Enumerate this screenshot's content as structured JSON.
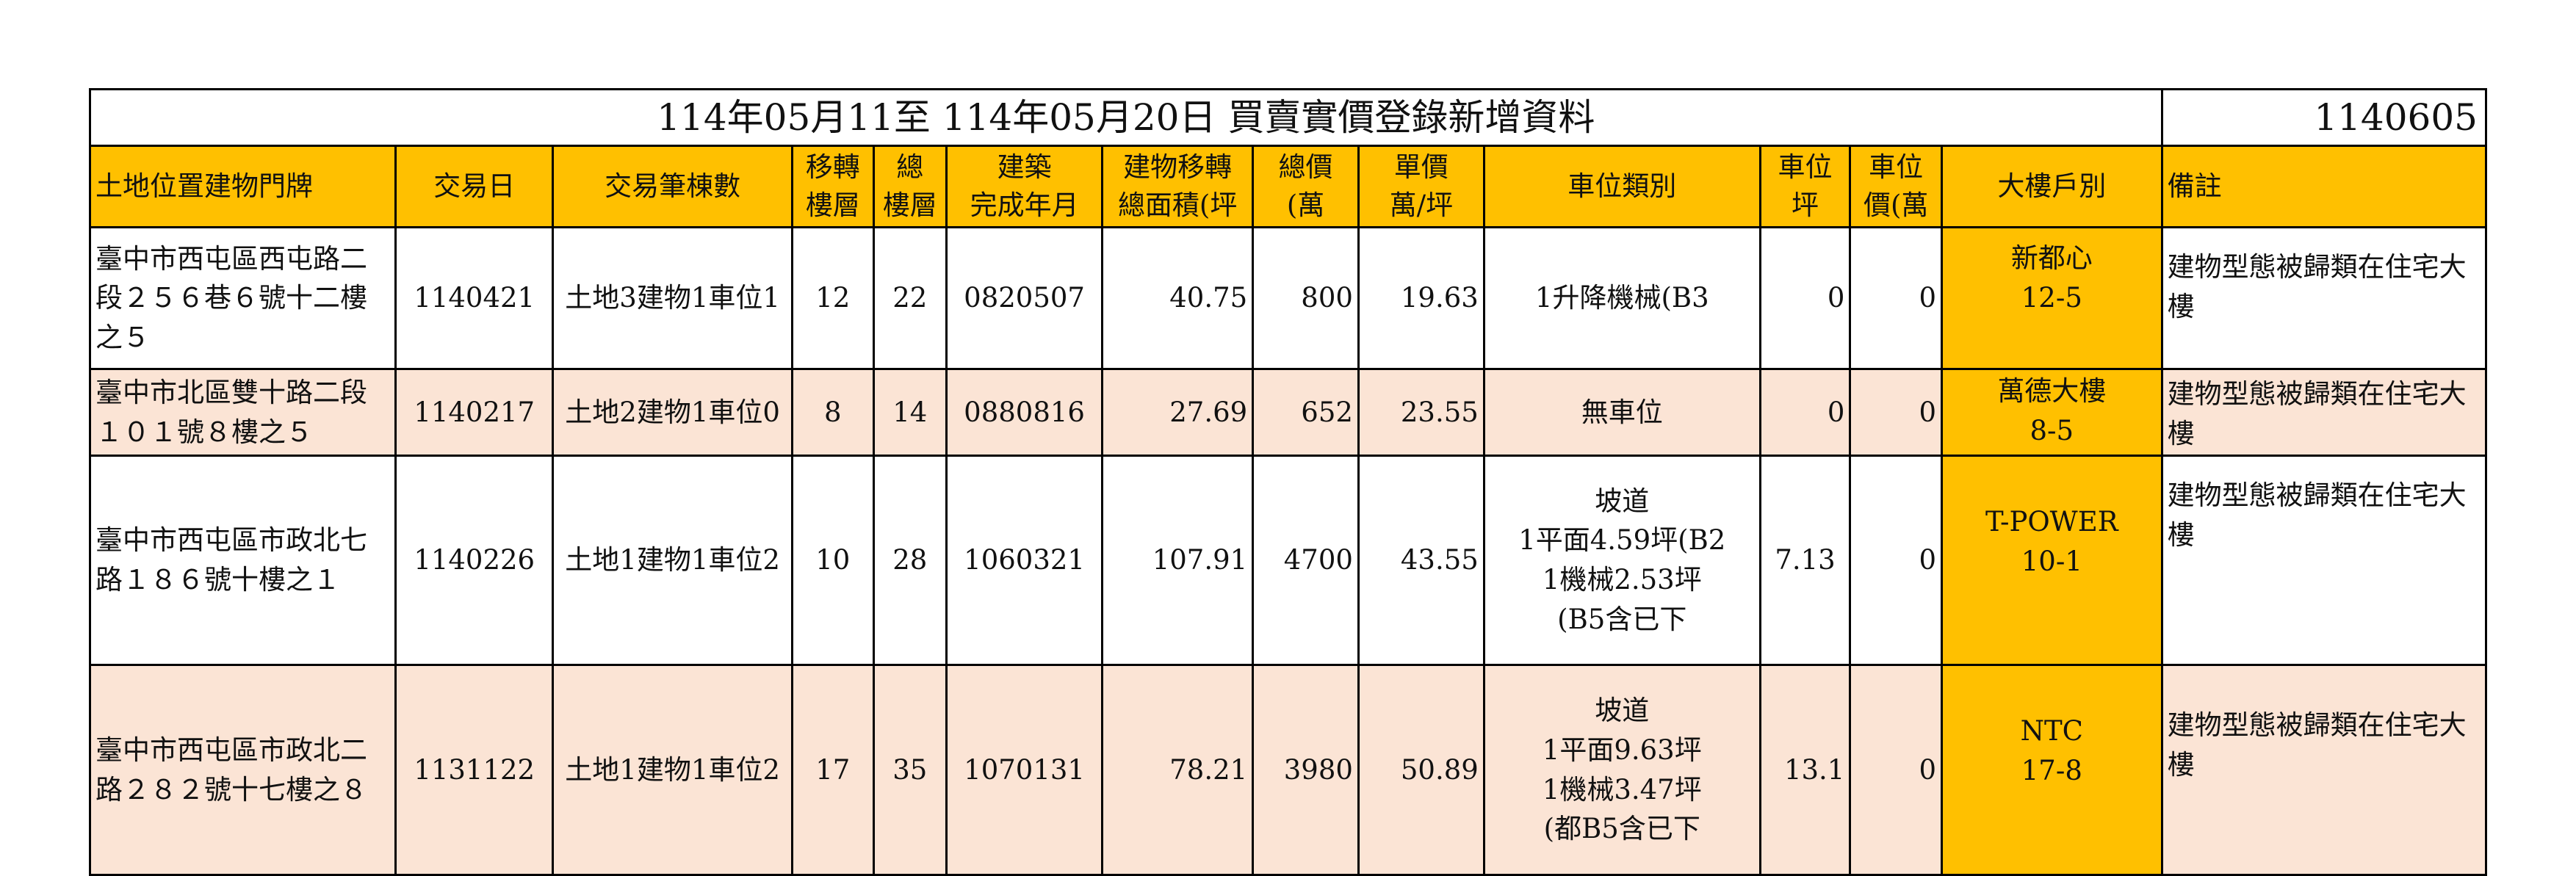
{
  "title": "114年05月11至 114年05月20日  買賣實價登錄新增資料",
  "code": "1140605",
  "headers": {
    "location": "土地位置建物門牌",
    "date": "交易日",
    "parcels": "交易筆棟數",
    "floor": "移轉\n樓層",
    "total_floors": "總\n樓層",
    "built": "建築\n完成年月",
    "area": "建物移轉\n總面積(坪",
    "total_price": "總價\n(萬",
    "unit_price": "單價\n萬/坪",
    "parking_type": "車位類別",
    "parking_area": "車位\n坪",
    "parking_price": "車位\n價(萬",
    "building": "大樓戶別",
    "note": "備註"
  },
  "rows": [
    {
      "location": "臺中市西屯區西屯路二段２５６巷６號十二樓之５",
      "date": "1140421",
      "parcels": "土地3建物1車位1",
      "floor": "12",
      "total_floors": "22",
      "built": "0820507",
      "area": "40.75",
      "total_price": "800",
      "unit_price": "19.63",
      "parking_type": "1升降機械(B3",
      "parking_area": "0",
      "parking_price": "0",
      "building": "新都心\n12-5",
      "note": "建物型態被歸類在住宅大樓"
    },
    {
      "location": "臺中市北區雙十路二段１０１號８樓之５",
      "date": "1140217",
      "parcels": "土地2建物1車位0",
      "floor": "8",
      "total_floors": "14",
      "built": "0880816",
      "area": "27.69",
      "total_price": "652",
      "unit_price": "23.55",
      "parking_type": "無車位",
      "parking_area": "0",
      "parking_price": "0",
      "building": "萬德大樓\n8-5",
      "note": "建物型態被歸類在住宅大樓"
    },
    {
      "location": "臺中市西屯區市政北七路１８６號十樓之１",
      "date": "1140226",
      "parcels": "土地1建物1車位2",
      "floor": "10",
      "total_floors": "28",
      "built": "1060321",
      "area": "107.91",
      "total_price": "4700",
      "unit_price": "43.55",
      "parking_type": "坡道\n1平面4.59坪(B2\n1機械2.53坪\n(B5含已下",
      "parking_area": "7.13",
      "parking_price": "0",
      "building": "T-POWER\n10-1",
      "note": "建物型態被歸類在住宅大樓"
    },
    {
      "location": "臺中市西屯區市政北二路２８２號十七樓之８",
      "date": "1131122",
      "parcels": "土地1建物1車位2",
      "floor": "17",
      "total_floors": "35",
      "built": "1070131",
      "area": "78.21",
      "total_price": "3980",
      "unit_price": "50.89",
      "parking_type": "坡道\n1平面9.63坪\n1機械3.47坪\n(都B5含已下",
      "parking_area": "13.1",
      "parking_price": "0",
      "building": "NTC\n17-8",
      "note": "建物型態被歸類在住宅大樓"
    }
  ],
  "colors": {
    "header": "#ffc000",
    "alt_row": "#fbe4d5",
    "border": "#000000"
  }
}
